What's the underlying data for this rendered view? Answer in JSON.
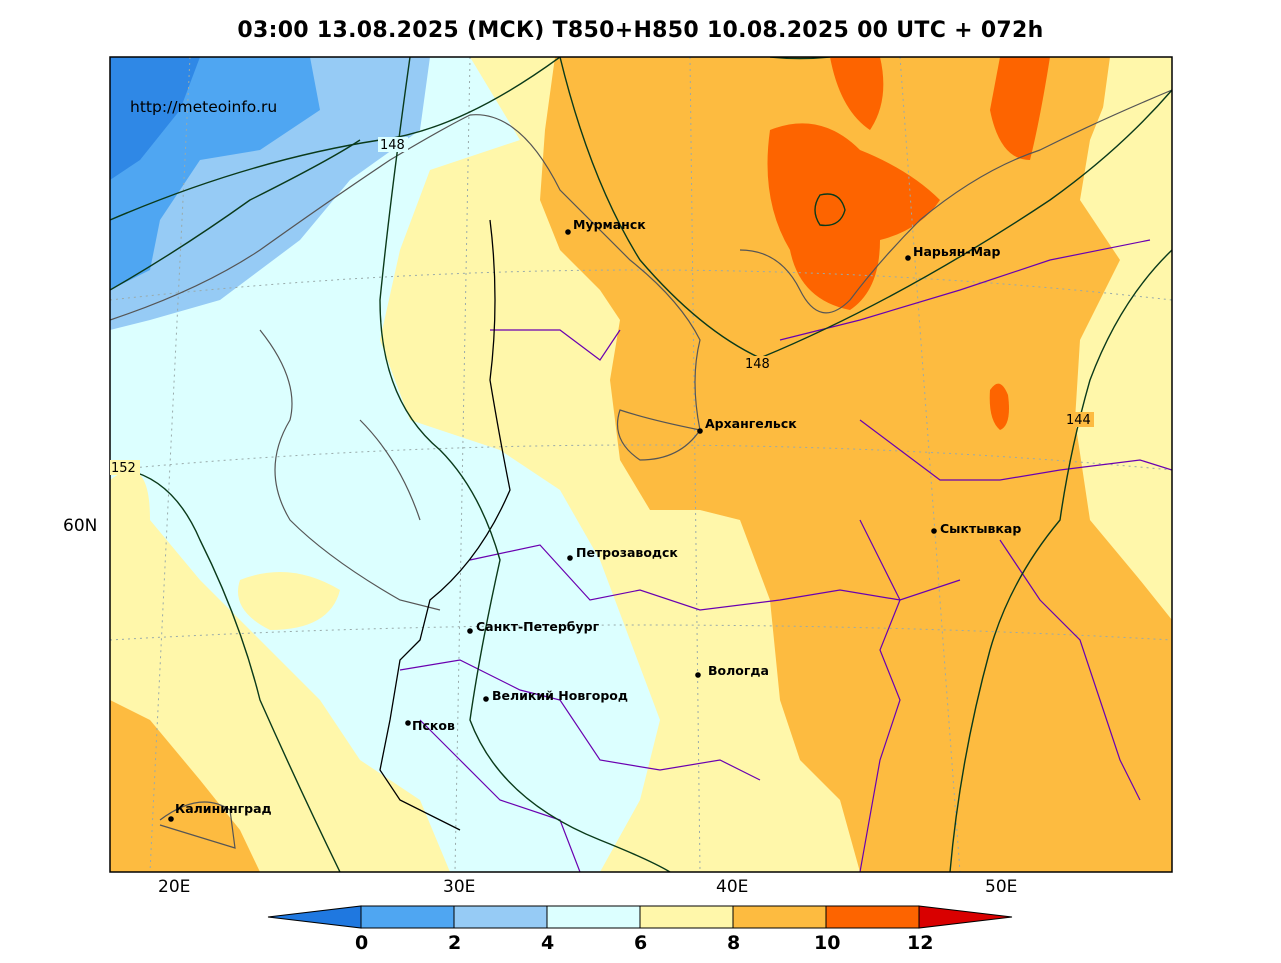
{
  "title": "03:00 13.08.2025 (МСК) T850+H850 10.08.2025 00 UTC + 072h",
  "watermark": "http://meteoinfo.ru",
  "axes": {
    "lon_ticks": [
      "20E",
      "30E",
      "40E",
      "50E"
    ],
    "lat_ticks": [
      "60N"
    ]
  },
  "contour_labels": [
    "148",
    "148",
    "144",
    "152"
  ],
  "cities": [
    {
      "name": "Мурманск"
    },
    {
      "name": "Нарьян-Мар"
    },
    {
      "name": "Архангельск"
    },
    {
      "name": "Сыктывкар"
    },
    {
      "name": "Петрозаводск"
    },
    {
      "name": "Санкт-Петербург"
    },
    {
      "name": "Вологда"
    },
    {
      "name": "Великий Новгород"
    },
    {
      "name": "Псков"
    },
    {
      "name": "Калининград"
    }
  ],
  "colorbar": {
    "labels": [
      "0",
      "2",
      "4",
      "6",
      "8",
      "10",
      "12"
    ],
    "colors": [
      "#1f78e0",
      "#4fa6f2",
      "#96cbf5",
      "#dcffff",
      "#fff7aa",
      "#fdbb40",
      "#fd6400",
      "#d90000"
    ]
  }
}
